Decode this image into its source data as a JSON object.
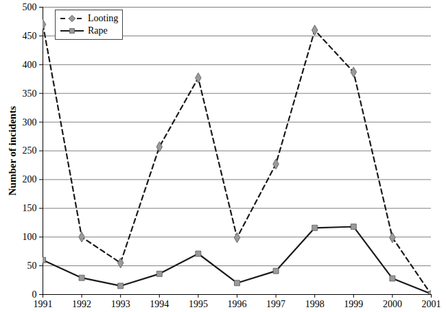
{
  "chart_data": {
    "type": "line",
    "y_label": "Number of incidents",
    "x": [
      1991,
      1992,
      1993,
      1994,
      1995,
      1996,
      1997,
      1998,
      1999,
      2000,
      2001
    ],
    "series": [
      {
        "name": "Looting",
        "color": "#1a1a1a",
        "marker": "diamond",
        "line_style": "dashed",
        "values": [
          470,
          100,
          55,
          257,
          377,
          99,
          227,
          460,
          387,
          99,
          0
        ]
      },
      {
        "name": "Rape",
        "color": "#1a1a1a",
        "marker": "square",
        "line_style": "solid",
        "values": [
          60,
          29,
          15,
          36,
          71,
          20,
          41,
          116,
          118,
          28,
          1
        ]
      }
    ],
    "xlim": [
      1991,
      2001
    ],
    "xticks": [
      1991,
      1992,
      1993,
      1994,
      1995,
      1996,
      1997,
      1998,
      1999,
      2000,
      2001
    ],
    "ylim": [
      0,
      500
    ],
    "yticks": [
      0,
      50,
      100,
      150,
      200,
      250,
      300,
      350,
      400,
      450,
      500
    ],
    "grid": true,
    "legend": "top-left"
  }
}
